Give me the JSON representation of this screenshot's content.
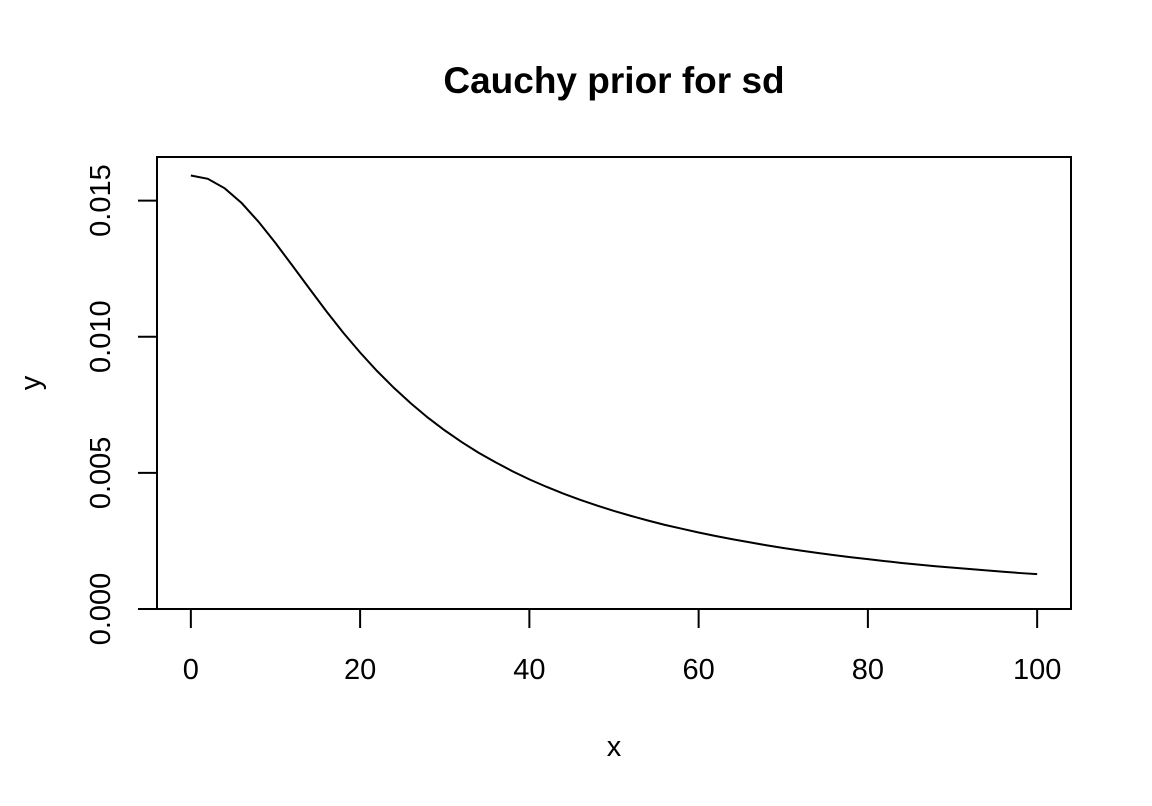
{
  "chart_data": {
    "type": "line",
    "title": "Cauchy prior for sd",
    "xlabel": "x",
    "ylabel": "y",
    "xlim": [
      -4,
      104
    ],
    "ylim": [
      0,
      0.0166
    ],
    "x_ticks": [
      0,
      20,
      40,
      60,
      80,
      100
    ],
    "x_tick_labels": [
      "0",
      "20",
      "40",
      "60",
      "80",
      "100"
    ],
    "y_ticks": [
      0,
      0.005,
      0.01,
      0.015
    ],
    "y_tick_labels": [
      "0.000",
      "0.005",
      "0.010",
      "0.015"
    ],
    "grid": false,
    "legend": "none",
    "line_color": "#000000",
    "series": [
      {
        "x": [
          0,
          2,
          4,
          6,
          8,
          10,
          12,
          14,
          16,
          18,
          20,
          22,
          24,
          26,
          28,
          30,
          32,
          34,
          36,
          38,
          40,
          42,
          44,
          46,
          48,
          50,
          52,
          54,
          56,
          58,
          60,
          62,
          64,
          66,
          68,
          70,
          72,
          74,
          76,
          78,
          80,
          82,
          84,
          86,
          88,
          90,
          92,
          94,
          96,
          98,
          100
        ],
        "values": [
          0.01592,
          0.0158,
          0.01545,
          0.01491,
          0.01422,
          0.01344,
          0.01261,
          0.01177,
          0.01094,
          0.01015,
          0.00942,
          0.00874,
          0.00812,
          0.00755,
          0.00703,
          0.00656,
          0.00613,
          0.00574,
          0.00539,
          0.00506,
          0.00476,
          0.00449,
          0.00424,
          0.00401,
          0.0038,
          0.0036,
          0.00342,
          0.00325,
          0.00309,
          0.00295,
          0.00281,
          0.00268,
          0.00256,
          0.00245,
          0.00234,
          0.00224,
          0.00215,
          0.00206,
          0.00198,
          0.0019,
          0.00183,
          0.00176,
          0.00169,
          0.00163,
          0.00157,
          0.00152,
          0.00147,
          0.00142,
          0.00137,
          0.00132,
          0.00128
        ]
      }
    ]
  }
}
